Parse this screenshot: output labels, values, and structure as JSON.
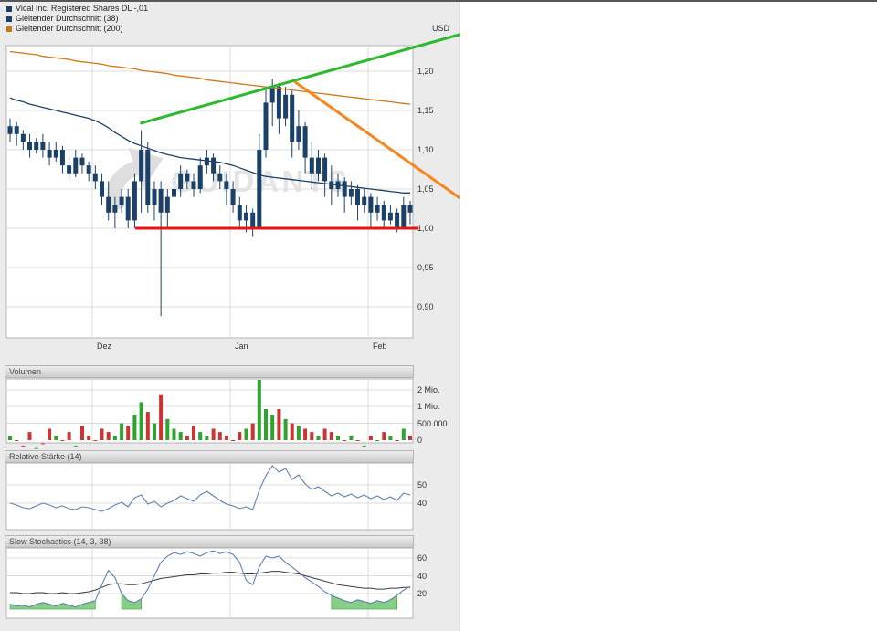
{
  "legend": {
    "items": [
      {
        "label": "Vical Inc. Registered Shares DL -,01",
        "color": "#1c4169"
      },
      {
        "label": "Gleitender Durchschnitt (38)",
        "color": "#1c4169"
      },
      {
        "label": "Gleitender Durchschnitt (200)",
        "color": "#d07818"
      }
    ]
  },
  "main_chart": {
    "currency": "USD"
  },
  "panels": {
    "volume": {
      "title": "Volumen"
    },
    "rsi": {
      "title": "Relative Stärke (14)"
    },
    "stoch": {
      "title": "Slow Stochastics (14, 3, 38)"
    }
  },
  "watermark": {
    "text": "GUIDANTS"
  },
  "chart_data": {
    "type": "candlestick+volume+rsi+stochastics",
    "title": "Vical Inc. Registered Shares DL -,01",
    "currency": "USD",
    "months": [
      {
        "label": "Dez",
        "index": 13
      },
      {
        "label": "Jan",
        "index": 34
      },
      {
        "label": "Feb",
        "index": 55
      }
    ],
    "price_ticks": [
      {
        "label": "1,20",
        "value": 1.2
      },
      {
        "label": "1,15",
        "value": 1.15
      },
      {
        "label": "1,10",
        "value": 1.1
      },
      {
        "label": "1,05",
        "value": 1.05
      },
      {
        "label": "1,00",
        "value": 1.0
      },
      {
        "label": "0,95",
        "value": 0.95
      },
      {
        "label": "0,90",
        "value": 0.9
      }
    ],
    "volume_ticks": [
      {
        "label": "2 Mio.",
        "value": 2000000
      },
      {
        "label": "1 Mio.",
        "value": 1000000
      },
      {
        "label": "500.000",
        "value": 500000
      },
      {
        "label": "0",
        "value": 0
      }
    ],
    "rsi_ticks": [
      {
        "label": "50",
        "value": 50
      },
      {
        "label": "40",
        "value": 40
      }
    ],
    "stoch_ticks": [
      {
        "label": "60",
        "value": 60
      },
      {
        "label": "40",
        "value": 40
      },
      {
        "label": "20",
        "value": 20
      }
    ],
    "candles": [
      [
        1.12,
        1.14,
        1.11,
        1.13
      ],
      [
        1.13,
        1.135,
        1.105,
        1.12
      ],
      [
        1.12,
        1.125,
        1.1,
        1.11
      ],
      [
        1.11,
        1.12,
        1.09,
        1.1
      ],
      [
        1.1,
        1.115,
        1.095,
        1.11
      ],
      [
        1.11,
        1.12,
        1.09,
        1.1
      ],
      [
        1.1,
        1.11,
        1.08,
        1.09
      ],
      [
        1.09,
        1.11,
        1.085,
        1.1
      ],
      [
        1.1,
        1.105,
        1.07,
        1.08
      ],
      [
        1.08,
        1.09,
        1.06,
        1.07
      ],
      [
        1.07,
        1.1,
        1.065,
        1.09
      ],
      [
        1.09,
        1.095,
        1.07,
        1.08
      ],
      [
        1.08,
        1.085,
        1.06,
        1.07
      ],
      [
        1.07,
        1.08,
        1.05,
        1.06
      ],
      [
        1.06,
        1.07,
        1.03,
        1.04
      ],
      [
        1.04,
        1.06,
        1.01,
        1.02
      ],
      [
        1.02,
        1.04,
        1.0,
        1.03
      ],
      [
        1.03,
        1.05,
        1.02,
        1.04
      ],
      [
        1.04,
        1.05,
        1.0,
        1.01
      ],
      [
        1.01,
        1.07,
        1.0,
        1.06
      ],
      [
        1.06,
        1.125,
        1.02,
        1.1
      ],
      [
        1.1,
        1.11,
        1.02,
        1.03
      ],
      [
        1.03,
        1.06,
        1.01,
        1.05
      ],
      [
        1.05,
        1.06,
        0.888,
        1.02
      ],
      [
        1.02,
        1.05,
        1.0,
        1.04
      ],
      [
        1.04,
        1.06,
        1.03,
        1.05
      ],
      [
        1.05,
        1.08,
        1.04,
        1.07
      ],
      [
        1.07,
        1.075,
        1.05,
        1.06
      ],
      [
        1.06,
        1.07,
        1.04,
        1.05
      ],
      [
        1.05,
        1.09,
        1.045,
        1.08
      ],
      [
        1.08,
        1.1,
        1.07,
        1.09
      ],
      [
        1.09,
        1.095,
        1.06,
        1.07
      ],
      [
        1.07,
        1.08,
        1.05,
        1.06
      ],
      [
        1.06,
        1.07,
        1.03,
        1.05
      ],
      [
        1.05,
        1.06,
        1.02,
        1.03
      ],
      [
        1.03,
        1.04,
        1.0,
        1.01
      ],
      [
        1.01,
        1.03,
        0.995,
        1.02
      ],
      [
        1.02,
        1.025,
        0.99,
        1.0
      ],
      [
        1.0,
        1.12,
        1.0,
        1.1
      ],
      [
        1.1,
        1.18,
        1.09,
        1.16
      ],
      [
        1.16,
        1.19,
        1.13,
        1.18
      ],
      [
        1.18,
        1.185,
        1.12,
        1.14
      ],
      [
        1.14,
        1.18,
        1.13,
        1.17
      ],
      [
        1.17,
        1.175,
        1.09,
        1.11
      ],
      [
        1.11,
        1.15,
        1.1,
        1.13
      ],
      [
        1.13,
        1.135,
        1.07,
        1.09
      ],
      [
        1.09,
        1.11,
        1.05,
        1.07
      ],
      [
        1.07,
        1.1,
        1.06,
        1.09
      ],
      [
        1.09,
        1.095,
        1.04,
        1.06
      ],
      [
        1.06,
        1.08,
        1.03,
        1.05
      ],
      [
        1.05,
        1.07,
        1.04,
        1.06
      ],
      [
        1.06,
        1.065,
        1.02,
        1.04
      ],
      [
        1.04,
        1.06,
        1.03,
        1.05
      ],
      [
        1.05,
        1.055,
        1.01,
        1.03
      ],
      [
        1.03,
        1.05,
        1.02,
        1.04
      ],
      [
        1.04,
        1.045,
        1.0,
        1.02
      ],
      [
        1.02,
        1.04,
        1.01,
        1.03
      ],
      [
        1.03,
        1.035,
        1.0,
        1.01
      ],
      [
        1.01,
        1.03,
        1.005,
        1.02
      ],
      [
        1.02,
        1.025,
        0.995,
        1.0
      ],
      [
        1.0,
        1.04,
        1.0,
        1.03
      ],
      [
        1.03,
        1.035,
        1.005,
        1.02
      ]
    ],
    "ma38": [
      1.166,
      1.163,
      1.161,
      1.158,
      1.156,
      1.154,
      1.152,
      1.15,
      1.148,
      1.146,
      1.144,
      1.142,
      1.14,
      1.137,
      1.133,
      1.128,
      1.122,
      1.117,
      1.112,
      1.108,
      1.105,
      1.102,
      1.099,
      1.096,
      1.094,
      1.092,
      1.09,
      1.089,
      1.088,
      1.087,
      1.086,
      1.085,
      1.084,
      1.082,
      1.08,
      1.077,
      1.074,
      1.071,
      1.068,
      1.066,
      1.065,
      1.064,
      1.063,
      1.062,
      1.061,
      1.06,
      1.059,
      1.058,
      1.057,
      1.056,
      1.055,
      1.054,
      1.053,
      1.052,
      1.051,
      1.05,
      1.049,
      1.048,
      1.047,
      1.046,
      1.045,
      1.045
    ],
    "ma200": [
      1.225,
      1.224,
      1.223,
      1.222,
      1.221,
      1.219,
      1.218,
      1.217,
      1.216,
      1.215,
      1.213,
      1.212,
      1.211,
      1.21,
      1.209,
      1.207,
      1.206,
      1.205,
      1.204,
      1.203,
      1.201,
      1.2,
      1.199,
      1.198,
      1.197,
      1.195,
      1.194,
      1.193,
      1.192,
      1.191,
      1.189,
      1.188,
      1.187,
      1.186,
      1.185,
      1.184,
      1.183,
      1.182,
      1.181,
      1.18,
      1.179,
      1.178,
      1.177,
      1.176,
      1.175,
      1.174,
      1.173,
      1.172,
      1.171,
      1.17,
      1.169,
      1.168,
      1.167,
      1.166,
      1.165,
      1.164,
      1.163,
      1.162,
      1.161,
      1.16,
      1.159,
      1.158
    ],
    "volumes": [
      300000,
      250000,
      200000,
      350000,
      180000,
      220000,
      400000,
      300000,
      250000,
      350000,
      200000,
      450000,
      300000,
      250000,
      400000,
      350000,
      300000,
      500000,
      450000,
      700000,
      1200000,
      800000,
      500000,
      1600000,
      600000,
      400000,
      350000,
      300000,
      450000,
      350000,
      300000,
      400000,
      350000,
      300000,
      250000,
      350000,
      400000,
      500000,
      3000000,
      900000,
      700000,
      900000,
      600000,
      500000,
      450000,
      400000,
      350000,
      300000,
      400000,
      350000,
      300000,
      250000,
      300000,
      250000,
      200000,
      300000,
      250000,
      350000,
      300000,
      250000,
      400000,
      300000
    ],
    "rsi": [
      40,
      39,
      37.5,
      37,
      38.5,
      40,
      39,
      37.5,
      38.5,
      37,
      36.5,
      38,
      37.5,
      36.5,
      35.5,
      37,
      39,
      40.5,
      38,
      43,
      44.5,
      39.5,
      41,
      38,
      40,
      41.5,
      44,
      42.5,
      41,
      44.5,
      46.5,
      44,
      41.5,
      39.5,
      38.5,
      37,
      38,
      36.5,
      47,
      55,
      60.5,
      57,
      59,
      53,
      55.5,
      50.5,
      47.5,
      49,
      46.5,
      44,
      45.5,
      43.5,
      45,
      43,
      44.5,
      42.5,
      44,
      42,
      43.5,
      41.5,
      45.5,
      44.5
    ],
    "stoch_k": [
      8,
      6,
      7,
      5,
      8,
      10,
      8,
      6,
      9,
      7,
      5,
      8,
      10,
      12,
      30,
      46,
      38,
      20,
      12,
      10,
      14,
      25,
      40,
      55,
      62,
      66,
      64,
      67,
      65,
      62,
      66,
      68,
      65,
      67,
      64,
      55,
      35,
      30,
      50,
      62,
      60,
      62,
      55,
      50,
      44,
      38,
      33,
      28,
      22,
      18,
      15,
      12,
      10,
      13,
      11,
      9,
      12,
      10,
      13,
      18,
      24,
      28
    ],
    "stoch_d": [
      21,
      21,
      20,
      20,
      21,
      21,
      20,
      20,
      21,
      20,
      20,
      21,
      22,
      24,
      27,
      30,
      31,
      31,
      30,
      30,
      31,
      33,
      35,
      37,
      38,
      39,
      40,
      41,
      41,
      42,
      42,
      43,
      43,
      44,
      44,
      43,
      42,
      42,
      43,
      44,
      45,
      45,
      44,
      43,
      42,
      40,
      38,
      36,
      34,
      32,
      30,
      29,
      28,
      27,
      26,
      26,
      25,
      25,
      26,
      26,
      27,
      27
    ],
    "annotations": {
      "support_line": {
        "price": 1.0,
        "from_index": 19.1,
        "to_index": 62.3,
        "color": "#e81414"
      },
      "trend_up": {
        "from": {
          "index": 20,
          "price": 1.134
        },
        "to": {
          "index": 68.5,
          "price": 1.2465
        },
        "color": "#2eb82e"
      },
      "trend_down": {
        "from": {
          "index": 43.5,
          "price": 1.186
        },
        "to": {
          "index": 68.5,
          "price": 1.039
        },
        "color": "#f5871e"
      }
    },
    "colors": {
      "candle": "#1c4169",
      "ma38": "#1c4169",
      "ma200": "#d07818",
      "volume_up": "#2ea42e",
      "volume_down": "#cc3333",
      "rsi": "#6181b8",
      "stoch_k": "#6181b8",
      "stoch_d": "#3c3c3c",
      "stoch_fill": "#86cf86",
      "stoch_fill_edge": "#57b457",
      "grid": "#dcdcdc",
      "panel_border": "#b3b3b3"
    }
  }
}
